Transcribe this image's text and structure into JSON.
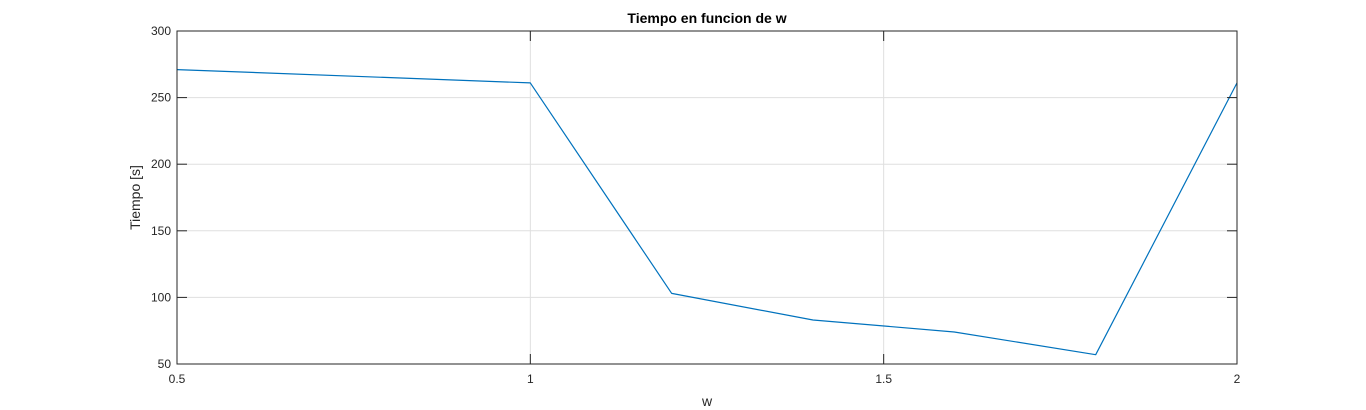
{
  "chart_data": {
    "type": "line",
    "title": "Tiempo en funcion de w",
    "xlabel": "w",
    "ylabel": "Tiempo [s]",
    "xlim": [
      0.5,
      2
    ],
    "ylim": [
      50,
      300
    ],
    "xticks": [
      0.5,
      1,
      1.5,
      2
    ],
    "xtick_labels": [
      "0.5",
      "1",
      "1.5",
      "2"
    ],
    "yticks": [
      50,
      100,
      150,
      200,
      250,
      300
    ],
    "ytick_labels": [
      "50",
      "100",
      "150",
      "200",
      "250",
      "300"
    ],
    "grid": true,
    "series": [
      {
        "x": [
          0.5,
          1.0,
          1.2,
          1.4,
          1.6,
          1.8,
          2.0
        ],
        "y": [
          271,
          261,
          103,
          83,
          74,
          57,
          261
        ],
        "color": "#0072BD"
      }
    ]
  }
}
